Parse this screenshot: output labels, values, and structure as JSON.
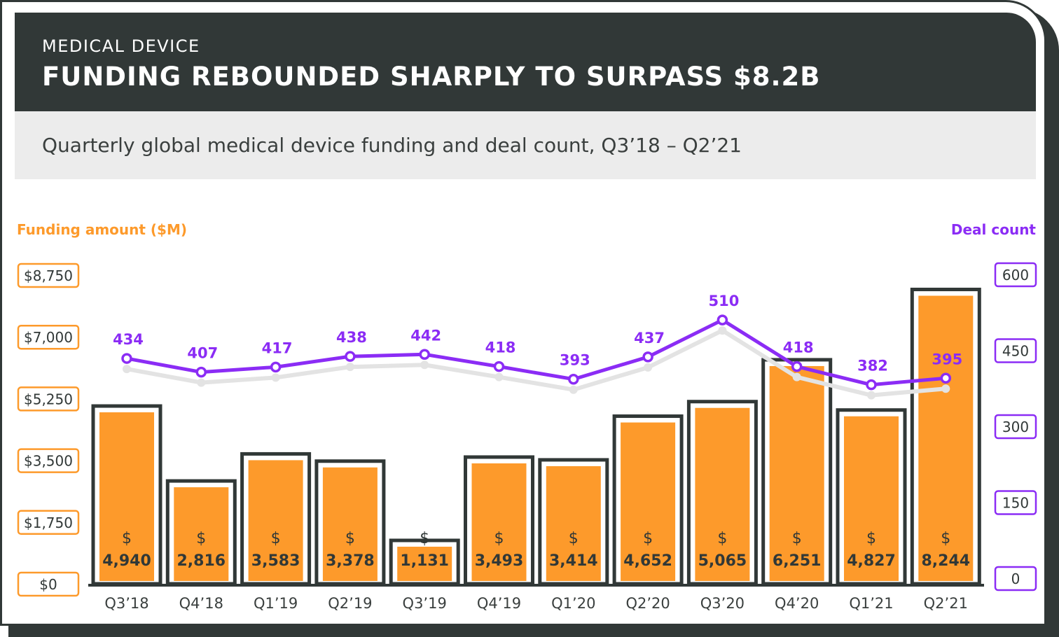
{
  "header": {
    "eyebrow": "MEDICAL DEVICE",
    "title": "FUNDING REBOUNDED SHARPLY TO SURPASS $8.2B"
  },
  "subtitle": "Quarterly global medical device funding and deal count, Q3’18 – Q2’21",
  "colors": {
    "bar": "#fd9a2b",
    "line": "#8b2cf5",
    "dark": "#313837",
    "header_bg": "#313837",
    "subtitle_bg": "#ececec"
  },
  "chart_data": {
    "type": "bar+line",
    "categories": [
      "Q3’18",
      "Q4’18",
      "Q1’19",
      "Q2’19",
      "Q3’19",
      "Q4’19",
      "Q1’20",
      "Q2’20",
      "Q3’20",
      "Q4’20",
      "Q1’21",
      "Q2’21"
    ],
    "series": [
      {
        "name": "Funding amount ($M)",
        "type": "bar",
        "axis": "left",
        "values": [
          4940,
          2816,
          3583,
          3378,
          1131,
          3493,
          3414,
          4652,
          5065,
          6251,
          4827,
          8244
        ],
        "labels": [
          "4,940",
          "2,816",
          "3,583",
          "3,378",
          "1,131",
          "3,493",
          "3,414",
          "4,652",
          "5,065",
          "6,251",
          "4,827",
          "8,244"
        ],
        "label_prefix": "$"
      },
      {
        "name": "Deal count",
        "type": "line",
        "axis": "right",
        "values": [
          434,
          407,
          417,
          438,
          442,
          418,
          393,
          437,
          510,
          418,
          382,
          395
        ]
      }
    ],
    "left_axis": {
      "title": "Funding amount ($M)",
      "ylim": [
        0,
        8750
      ],
      "ticks": [
        "$0",
        "$1,750",
        "$3,500",
        "$5,250",
        "$7,000",
        "$8,750"
      ],
      "tick_values": [
        0,
        1750,
        3500,
        5250,
        7000,
        8750
      ]
    },
    "right_axis": {
      "title": "Deal count",
      "ylim": [
        0,
        600
      ],
      "ticks": [
        "0",
        "150",
        "300",
        "450",
        "600"
      ],
      "tick_values": [
        0,
        150,
        300,
        450,
        600
      ]
    },
    "grid": false
  }
}
